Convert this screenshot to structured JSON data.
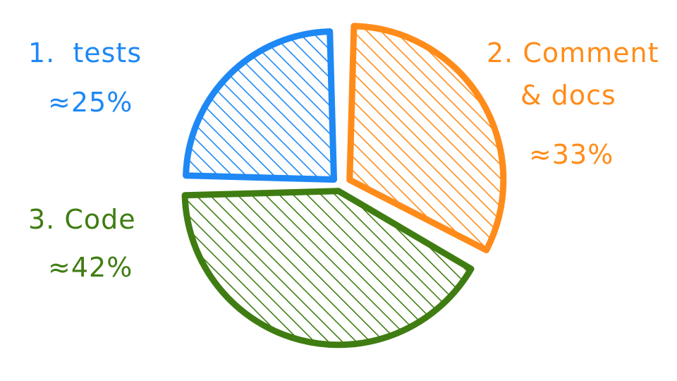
{
  "chart_data": {
    "type": "pie",
    "slices": [
      {
        "rank": "1.",
        "label": "tests",
        "value_text": "≈25%",
        "value": 25,
        "color": "#1e88f5"
      },
      {
        "rank": "2.",
        "label": "Comment & docs",
        "value_text": "≈33%",
        "value": 33,
        "color": "#ff8c1a"
      },
      {
        "rank": "3.",
        "label": "Code",
        "value_text": "≈42%",
        "value": 42,
        "color": "#3f7d12"
      }
    ]
  }
}
